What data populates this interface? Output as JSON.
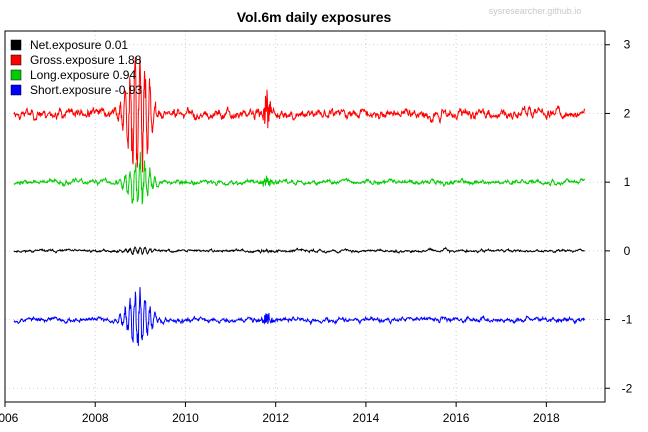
{
  "chart_data": {
    "type": "line",
    "title": "Vol.6m daily exposures",
    "watermark": "sysresearcher.github.io",
    "xlabel": "",
    "ylabel": "",
    "xlim": [
      2006.0,
      2019.3
    ],
    "ylim": [
      -2.2,
      3.2
    ],
    "x_ticks": [
      2006,
      2008,
      2010,
      2012,
      2014,
      2016,
      2018
    ],
    "x_tick_labels": [
      "2006",
      "2008",
      "2010",
      "2012",
      "2014",
      "2016",
      "2018"
    ],
    "y_ticks": [
      3,
      2,
      1,
      0,
      -1,
      -2
    ],
    "y_tick_labels": [
      "3",
      "2",
      "1",
      "0",
      "-1",
      "-2"
    ],
    "y_axis_side": "right",
    "grid": true,
    "legend_position": "top-left",
    "series": [
      {
        "name": "Net.exposure",
        "label_value": "0.01",
        "color": "#000000",
        "base": 0.0,
        "noise": 0.012,
        "crisis_amp": 0.05,
        "seed": 11
      },
      {
        "name": "Gross.exposure",
        "label_value": "1.88",
        "color": "#ff0000",
        "base": 2.0,
        "noise": 0.045,
        "crisis_amp": 0.75,
        "seed": 23
      },
      {
        "name": "Long.exposure",
        "label_value": "0.94",
        "color": "#00cc00",
        "base": 1.0,
        "noise": 0.022,
        "crisis_amp": 0.3,
        "seed": 37
      },
      {
        "name": "Short.exposure",
        "label_value": "-0.93",
        "color": "#0000ff",
        "base": -1.0,
        "noise": 0.022,
        "crisis_amp": 0.35,
        "seed": 53
      }
    ],
    "x_start": 2006.2,
    "x_end": 2018.85
  }
}
